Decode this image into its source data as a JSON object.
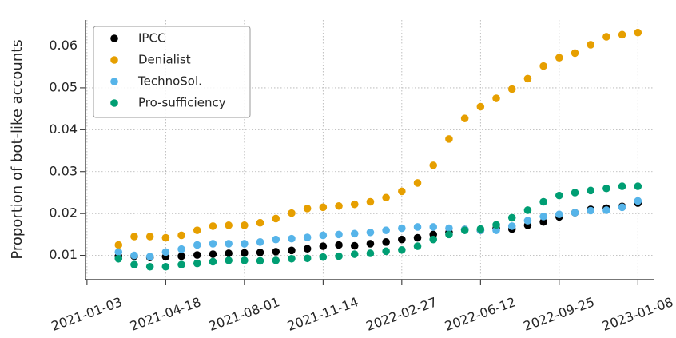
{
  "chart_data": {
    "type": "scatter",
    "y_label": "Proportion of bot-like accounts",
    "x": [
      "2021-02-14",
      "2021-03-07",
      "2021-03-28",
      "2021-04-18",
      "2021-05-09",
      "2021-05-30",
      "2021-06-20",
      "2021-07-11",
      "2021-08-01",
      "2021-08-22",
      "2021-09-12",
      "2021-10-03",
      "2021-10-24",
      "2021-11-14",
      "2021-12-05",
      "2021-12-26",
      "2022-01-16",
      "2022-02-06",
      "2022-02-27",
      "2022-03-20",
      "2022-04-10",
      "2022-05-01",
      "2022-05-22",
      "2022-06-12",
      "2022-07-03",
      "2022-07-24",
      "2022-08-14",
      "2022-09-04",
      "2022-09-25",
      "2022-10-16",
      "2022-11-06",
      "2022-11-27",
      "2022-12-18",
      "2023-01-08"
    ],
    "series": [
      {
        "name": "IPCC",
        "color": "#000000",
        "values": [
          0.0098,
          0.0098,
          0.0095,
          0.0097,
          0.0098,
          0.0101,
          0.0103,
          0.0105,
          0.0106,
          0.0107,
          0.0109,
          0.0112,
          0.0116,
          0.0122,
          0.0125,
          0.0123,
          0.0128,
          0.0132,
          0.0138,
          0.0142,
          0.015,
          0.0155,
          0.0162,
          0.016,
          0.0165,
          0.0163,
          0.0172,
          0.018,
          0.0192,
          0.0202,
          0.021,
          0.0213,
          0.0217,
          0.0225
        ]
      },
      {
        "name": "Denialist",
        "color": "#e69f00",
        "values": [
          0.0125,
          0.0145,
          0.0145,
          0.0142,
          0.0148,
          0.016,
          0.017,
          0.0172,
          0.0172,
          0.0178,
          0.0188,
          0.0201,
          0.0212,
          0.0215,
          0.0218,
          0.0222,
          0.0228,
          0.0238,
          0.0253,
          0.0273,
          0.0315,
          0.0378,
          0.0427,
          0.0455,
          0.0475,
          0.0497,
          0.0522,
          0.0552,
          0.0572,
          0.0583,
          0.0603,
          0.0622,
          0.0627,
          0.0632
        ]
      },
      {
        "name": "TechnoSol.",
        "color": "#56b4e9",
        "values": [
          0.0108,
          0.01,
          0.0097,
          0.0108,
          0.0115,
          0.0125,
          0.0128,
          0.0128,
          0.0128,
          0.0132,
          0.0138,
          0.014,
          0.0143,
          0.0148,
          0.015,
          0.0152,
          0.0155,
          0.016,
          0.0165,
          0.0168,
          0.0168,
          0.0165,
          0.0162,
          0.016,
          0.016,
          0.017,
          0.0183,
          0.0193,
          0.0198,
          0.0202,
          0.0207,
          0.0208,
          0.0215,
          0.023
        ]
      },
      {
        "name": "Pro-sufficiency",
        "color": "#009e73",
        "values": [
          0.0092,
          0.0078,
          0.0073,
          0.0073,
          0.0078,
          0.0081,
          0.0085,
          0.0088,
          0.0088,
          0.0087,
          0.0088,
          0.0092,
          0.0093,
          0.0096,
          0.0098,
          0.0103,
          0.0105,
          0.011,
          0.0113,
          0.0122,
          0.0138,
          0.015,
          0.016,
          0.0163,
          0.0173,
          0.019,
          0.0208,
          0.0228,
          0.0243,
          0.025,
          0.0255,
          0.026,
          0.0265,
          0.0265
        ]
      }
    ],
    "xlim": [
      "2021-01-01",
      "2023-01-29"
    ],
    "xticks": [
      "2021-01-03",
      "2021-04-18",
      "2021-08-01",
      "2021-11-14",
      "2022-02-27",
      "2022-06-12",
      "2022-09-25",
      "2023-01-08"
    ],
    "ylim": [
      0.0042,
      0.0662
    ],
    "yticks": [
      0.01,
      0.02,
      0.03,
      0.04,
      0.05,
      0.06
    ],
    "grid": true,
    "legend": "upper left"
  }
}
